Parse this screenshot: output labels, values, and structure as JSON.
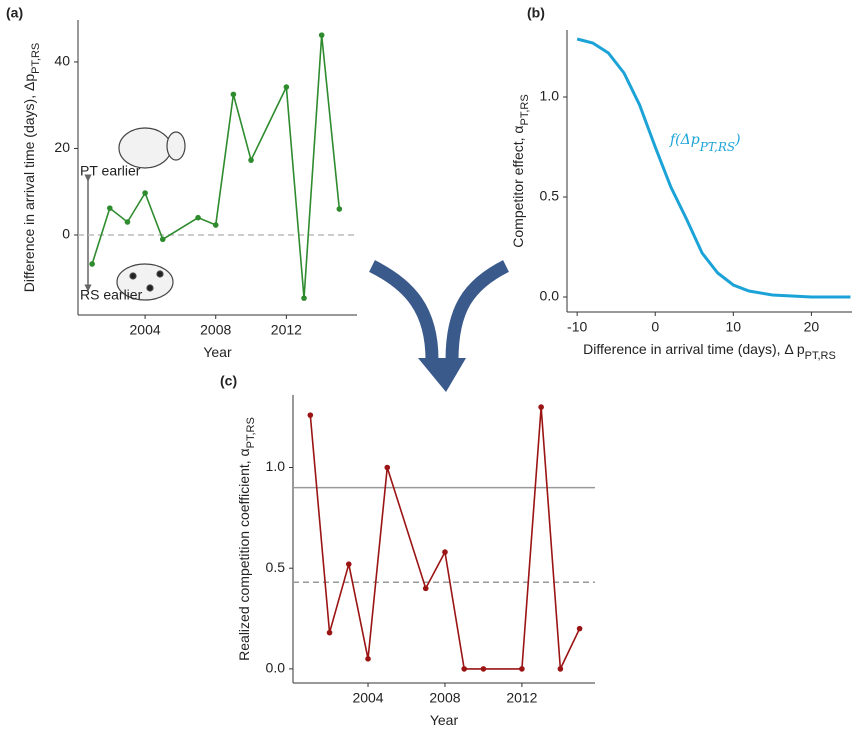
{
  "chart_data": [
    {
      "type": "line",
      "label": "(a)",
      "xlabel": "Year",
      "ylabel": "Difference in arrival time (days), Δp",
      "ylabel_sub": "PT,RS",
      "x": [
        2001,
        2002,
        2003,
        2004,
        2005,
        2007,
        2008,
        2009,
        2010,
        2012,
        2013,
        2014,
        2015
      ],
      "values": [
        -6.7,
        6.2,
        3,
        9.7,
        -1,
        4,
        2.3,
        32.5,
        17.3,
        34.2,
        -14.6,
        46.2,
        6
      ],
      "color": "#2e8b2e",
      "markers": true,
      "xlim": [
        2000.2,
        2016
      ],
      "ylim": [
        -18.5,
        49.7
      ],
      "xticks": [
        2004,
        2008,
        2012
      ],
      "yticks": [
        0,
        20,
        40
      ],
      "hlines": [
        {
          "value": 0,
          "style": "dashed",
          "color": "#bbbbbb"
        }
      ],
      "annotations": [
        "PT earlier",
        "RS earlier"
      ]
    },
    {
      "type": "line",
      "label": "(b)",
      "xlabel": "Difference in arrival time (days), Δ p",
      "xlabel_sub": "PT,RS",
      "ylabel": "Competitor effect, α",
      "ylabel_sub": "PT,RS",
      "x": [
        -10,
        -8,
        -6,
        -4,
        -2,
        0,
        2,
        4,
        6,
        8,
        10,
        12,
        15,
        20,
        25
      ],
      "values": [
        1.29,
        1.27,
        1.22,
        1.12,
        0.96,
        0.75,
        0.55,
        0.39,
        0.22,
        0.12,
        0.06,
        0.03,
        0.01,
        0,
        0
      ],
      "color": "#1ba3d8",
      "markers": false,
      "xlim": [
        -11.3,
        25.2
      ],
      "ylim": [
        -0.075,
        1.335
      ],
      "xticks": [
        -10,
        0,
        10,
        20
      ],
      "yticks": [
        {
          "value": 0,
          "label": "0.0"
        },
        0.5,
        {
          "value": 1,
          "label": "1.0"
        }
      ],
      "curve_label": "f(Δp",
      "curve_label_sub": "PT,RS",
      "curve_label_end": ")"
    },
    {
      "type": "line",
      "label": "(c)",
      "xlabel": "Year",
      "ylabel": "Realized competition coefficient, α",
      "ylabel_sub": "PT,RS",
      "x": [
        2001,
        2002,
        2003,
        2004,
        2005,
        2007,
        2008,
        2009,
        2010,
        2012,
        2013,
        2014,
        2015
      ],
      "values": [
        1.26,
        0.18,
        0.52,
        0.05,
        1.0,
        0.4,
        0.58,
        0,
        0,
        0,
        1.3,
        0,
        0.2
      ],
      "color": "#9b1414",
      "markers": true,
      "xlim": [
        2000.1,
        2015.8
      ],
      "ylim": [
        -0.07,
        1.36
      ],
      "xticks": [
        2004,
        2008,
        2012
      ],
      "yticks": [
        {
          "value": 0,
          "label": "0.0"
        },
        0.5,
        {
          "value": 1,
          "label": "1.0"
        }
      ],
      "hlines": [
        {
          "value": 0.9,
          "style": "solid",
          "color": "#999999"
        },
        {
          "value": 0.43,
          "style": "dashed",
          "color": "#999999"
        }
      ]
    }
  ]
}
